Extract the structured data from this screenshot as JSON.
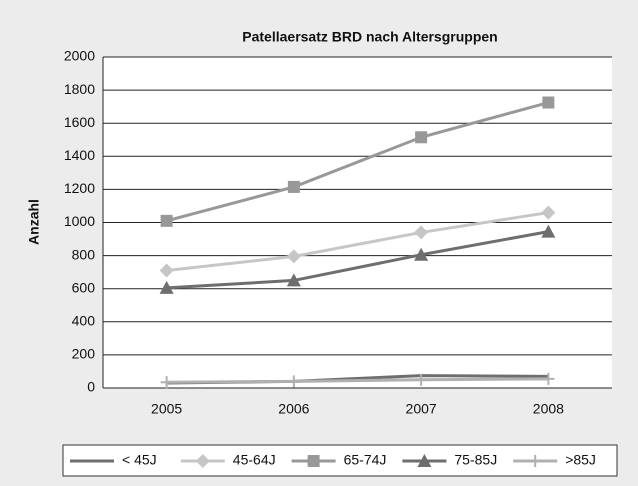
{
  "chart_data": {
    "type": "line",
    "title": "Patellaersatz BRD nach Altersgruppen",
    "y_label": "Anzahl",
    "categories": [
      "2005",
      "2006",
      "2007",
      "2008"
    ],
    "series": [
      {
        "name": "< 45J",
        "color": "#6e6e6e",
        "marker": "none",
        "values": [
          30,
          40,
          75,
          70
        ]
      },
      {
        "name": "45-64J",
        "color": "#c6c6c6",
        "marker": "diamond",
        "values": [
          710,
          795,
          940,
          1060
        ]
      },
      {
        "name": "65-74J",
        "color": "#989898",
        "marker": "square",
        "values": [
          1010,
          1215,
          1515,
          1725
        ]
      },
      {
        "name": "75-85J",
        "color": "#6e6e6e",
        "marker": "triangle",
        "values": [
          605,
          650,
          805,
          945
        ]
      },
      {
        "name": ">85J",
        "color": "#b0b0b0",
        "marker": "plus",
        "values": [
          35,
          40,
          50,
          55
        ]
      }
    ],
    "ylim": [
      0,
      2000
    ],
    "yticks": [
      0,
      200,
      400,
      600,
      800,
      1000,
      1200,
      1400,
      1600,
      1800,
      2000
    ],
    "grid": true,
    "legend": "bottom"
  }
}
